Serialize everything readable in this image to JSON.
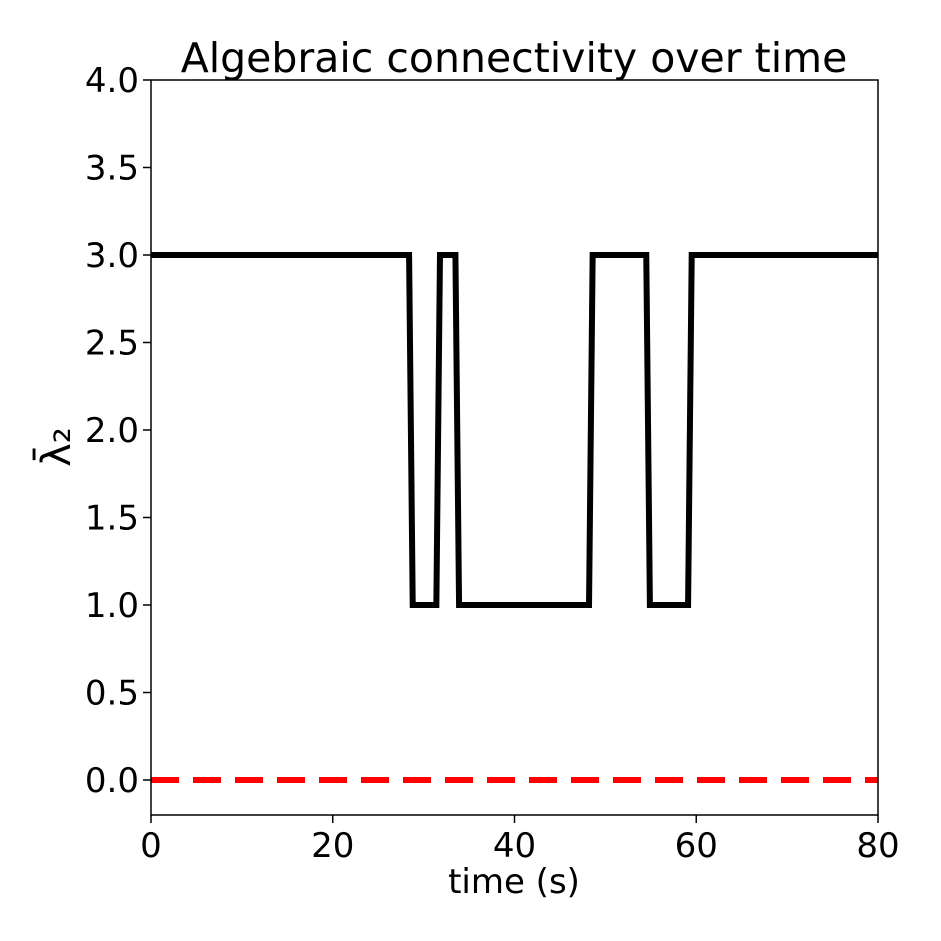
{
  "chart_data": {
    "type": "line",
    "title": "Algebraic connectivity over time",
    "xlabel": "time (s)",
    "ylabel": "λ̄₂",
    "xlim": [
      0,
      80
    ],
    "ylim": [
      -0.2,
      4.0
    ],
    "xticks": [
      0,
      20,
      40,
      60,
      80
    ],
    "yticks": [
      {
        "value": 0,
        "label": "0.0"
      },
      0.5,
      {
        "value": 1,
        "label": "1.0"
      },
      1.5,
      {
        "value": 2,
        "label": "2.0"
      },
      2.5,
      {
        "value": 3,
        "label": "3.0"
      },
      3.5,
      {
        "value": 4,
        "label": "4.0"
      }
    ],
    "series": [
      {
        "color": "#000000",
        "linestyle": "solid",
        "x": [
          0,
          28.4,
          28.8,
          31.4,
          31.8,
          33.5,
          33.9,
          48.2,
          48.6,
          54.5,
          54.9,
          59.1,
          59.5,
          80
        ],
        "values": [
          3,
          3,
          1,
          1,
          3,
          3,
          1,
          1,
          3,
          3,
          1,
          1,
          3,
          3
        ]
      },
      {
        "color": "#ff0000",
        "linestyle": "dashed",
        "x": [
          0,
          80
        ],
        "values": [
          0,
          0
        ]
      }
    ]
  }
}
